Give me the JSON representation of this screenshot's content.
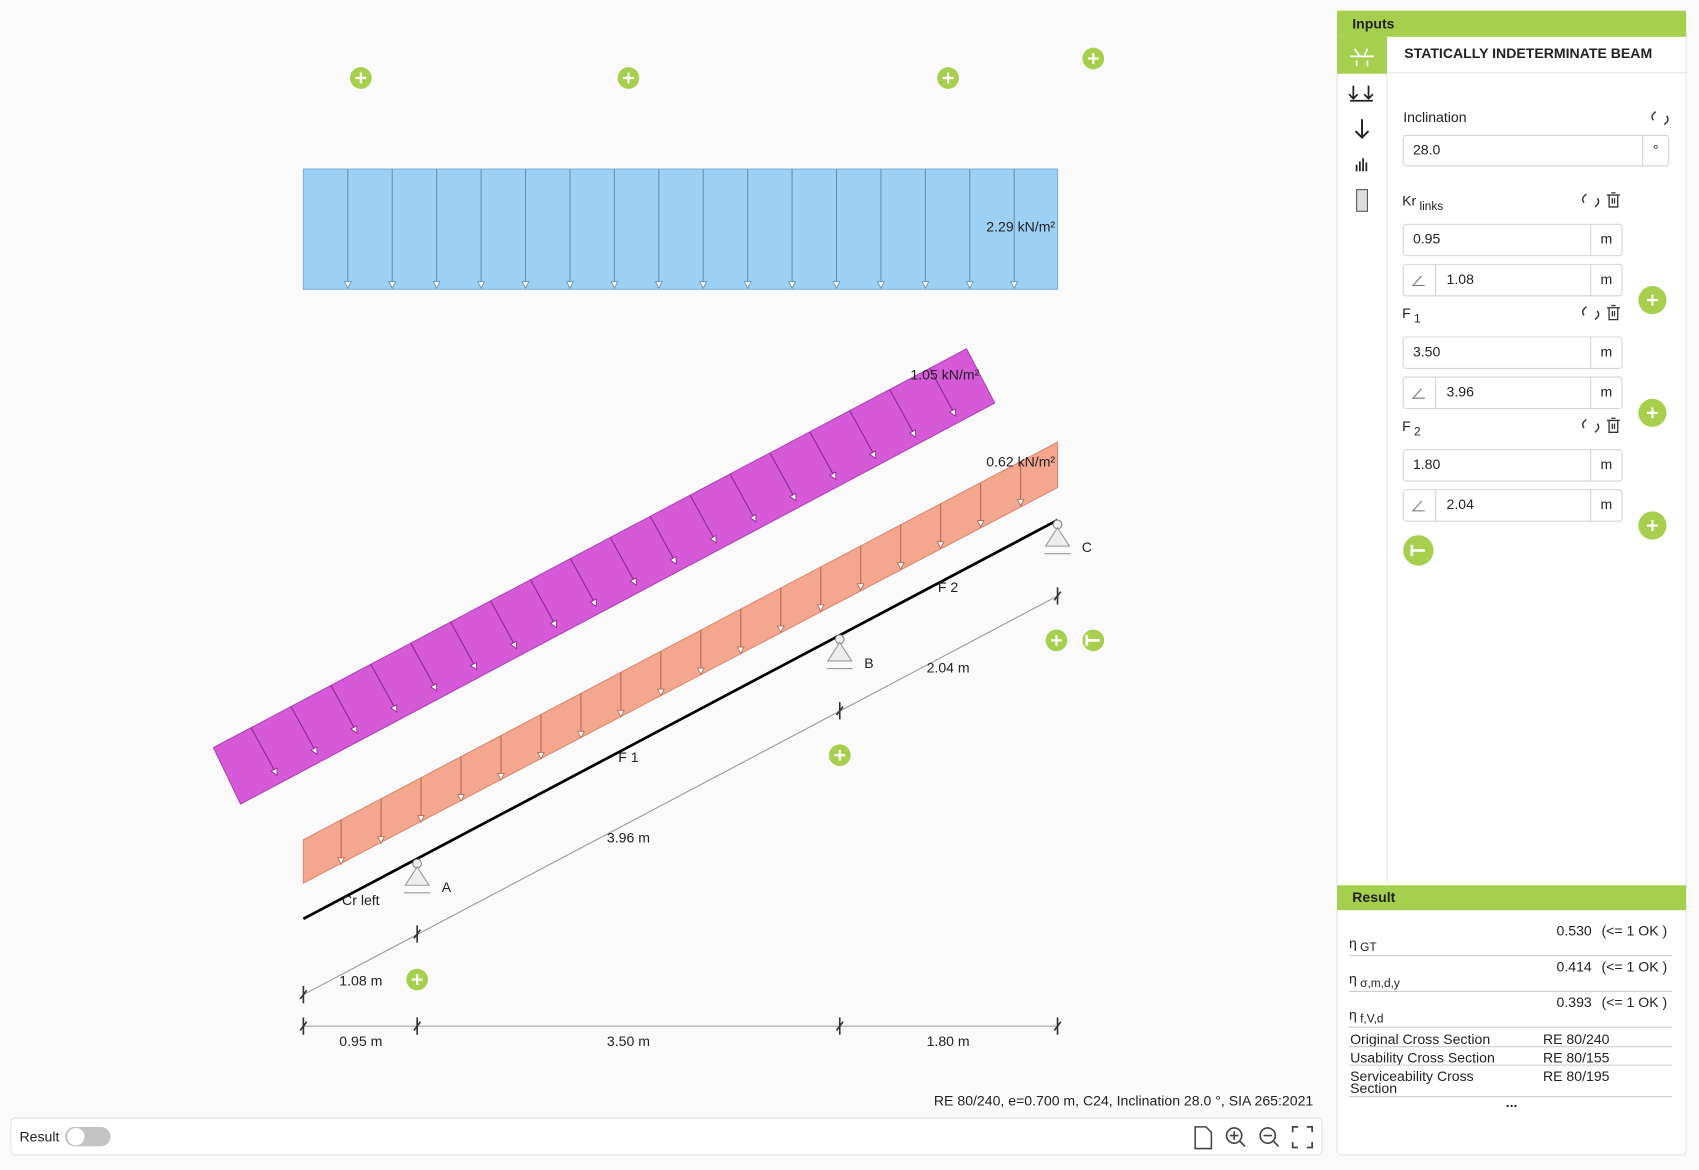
{
  "canvas": {
    "loads": [
      "2.29 kN/m²",
      "1.05 kN/m²",
      "0.62 kN/m²"
    ],
    "supports": [
      "A",
      "B",
      "C"
    ],
    "beam_labels": [
      "Cr left",
      "F 1",
      "F 2"
    ],
    "inclined_dims": [
      "1.08 m",
      "3.96 m",
      "2.04 m"
    ],
    "horizontal_dims": [
      "0.95 m",
      "3.50 m",
      "1.80 m"
    ],
    "info": "RE 80/240, e=0.700 m, C24, Inclination 28.0 °, SIA 265:2021"
  },
  "toolbar": {
    "result_label": "Result"
  },
  "inputs": {
    "header": "Inputs",
    "title": "STATICALLY INDETERMINATE BEAM",
    "inclination": {
      "label": "Inclination",
      "value": "28.0",
      "unit": "°"
    },
    "segments": [
      {
        "name": "Kr",
        "sub": "links",
        "length": "0.95",
        "length_unit": "m",
        "incl_length": "1.08",
        "incl_unit": "m"
      },
      {
        "name": "F",
        "sub": "1",
        "length": "3.50",
        "length_unit": "m",
        "incl_length": "3.96",
        "incl_unit": "m"
      },
      {
        "name": "F",
        "sub": "2",
        "length": "1.80",
        "length_unit": "m",
        "incl_length": "2.04",
        "incl_unit": "m"
      }
    ]
  },
  "result": {
    "header": "Result",
    "etas": [
      {
        "symbol": "η",
        "sub": "GT",
        "value": "0.530",
        "check": "(<= 1 OK )"
      },
      {
        "symbol": "η",
        "sub": "σ,m,d,y",
        "value": "0.414",
        "check": "(<= 1 OK )"
      },
      {
        "symbol": "η",
        "sub": "f,V,d",
        "value": "0.393",
        "check": "(<= 1 OK )"
      }
    ],
    "rows": [
      {
        "label": "Original Cross Section",
        "value": "RE 80/240"
      },
      {
        "label": "Usability Cross Section",
        "value": "RE 80/155"
      },
      {
        "label": "Serviceability Cross Section",
        "value": "RE 80/195"
      }
    ],
    "more": "..."
  }
}
